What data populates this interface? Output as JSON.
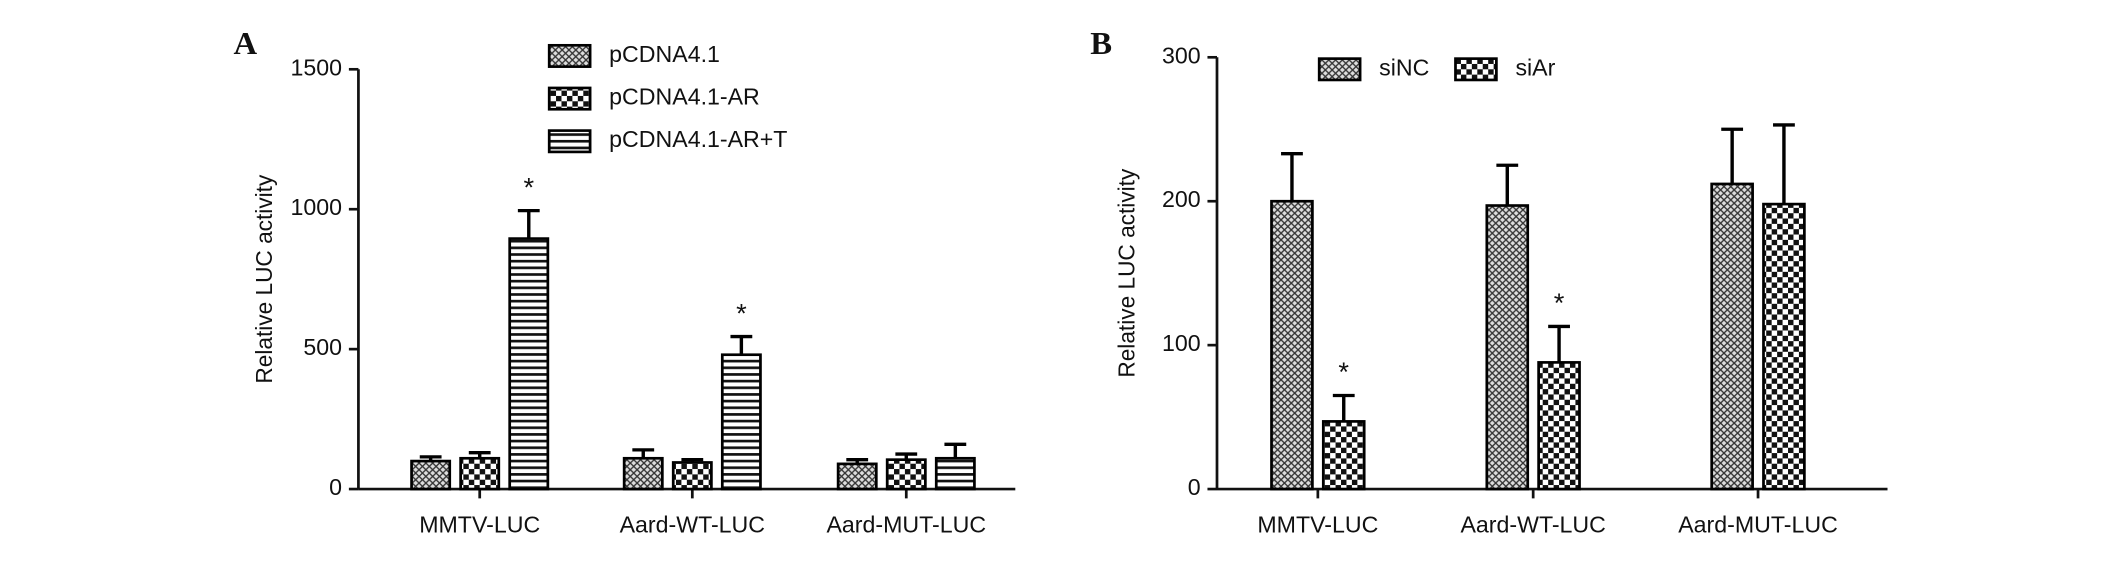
{
  "chart_data": [
    {
      "type": "bar",
      "panel": "A",
      "ylabel": "Relative LUC activity",
      "categories": [
        "MMTV-LUC",
        "Aard-WT-LUC",
        "Aard-MUT-LUC"
      ],
      "ylim": [
        0,
        1500
      ],
      "yticks": [
        0,
        500,
        1000,
        1500
      ],
      "series": [
        {
          "name": "pCDNA4.1",
          "pattern": "crosshatch",
          "color": "#000000",
          "values": [
            100,
            110,
            90
          ],
          "errors": [
            15,
            30,
            15
          ],
          "annotations": [
            null,
            null,
            null
          ]
        },
        {
          "name": "pCDNA4.1-AR",
          "pattern": "checker",
          "color": "#000000",
          "values": [
            110,
            95,
            105
          ],
          "errors": [
            20,
            10,
            20
          ],
          "annotations": [
            null,
            null,
            null
          ]
        },
        {
          "name": "pCDNA4.1-AR+T",
          "pattern": "stripes",
          "color": "#000000",
          "values": [
            895,
            480,
            110
          ],
          "errors": [
            100,
            65,
            50
          ],
          "annotations": [
            "*",
            "*",
            null
          ]
        }
      ]
    },
    {
      "type": "bar",
      "panel": "B",
      "ylabel": "Relative LUC activity",
      "categories": [
        "MMTV-LUC",
        "Aard-WT-LUC",
        "Aard-MUT-LUC"
      ],
      "ylim": [
        0,
        300
      ],
      "yticks": [
        0,
        100,
        200,
        300
      ],
      "series": [
        {
          "name": "siNC",
          "pattern": "crosshatch",
          "color": "#000000",
          "values": [
            200,
            197,
            212
          ],
          "errors": [
            33,
            28,
            38
          ],
          "annotations": [
            null,
            null,
            null
          ]
        },
        {
          "name": "siAr",
          "pattern": "checker",
          "color": "#000000",
          "values": [
            47,
            88,
            198
          ],
          "errors": [
            18,
            25,
            55
          ],
          "annotations": [
            "*",
            "*",
            null
          ]
        }
      ]
    }
  ]
}
